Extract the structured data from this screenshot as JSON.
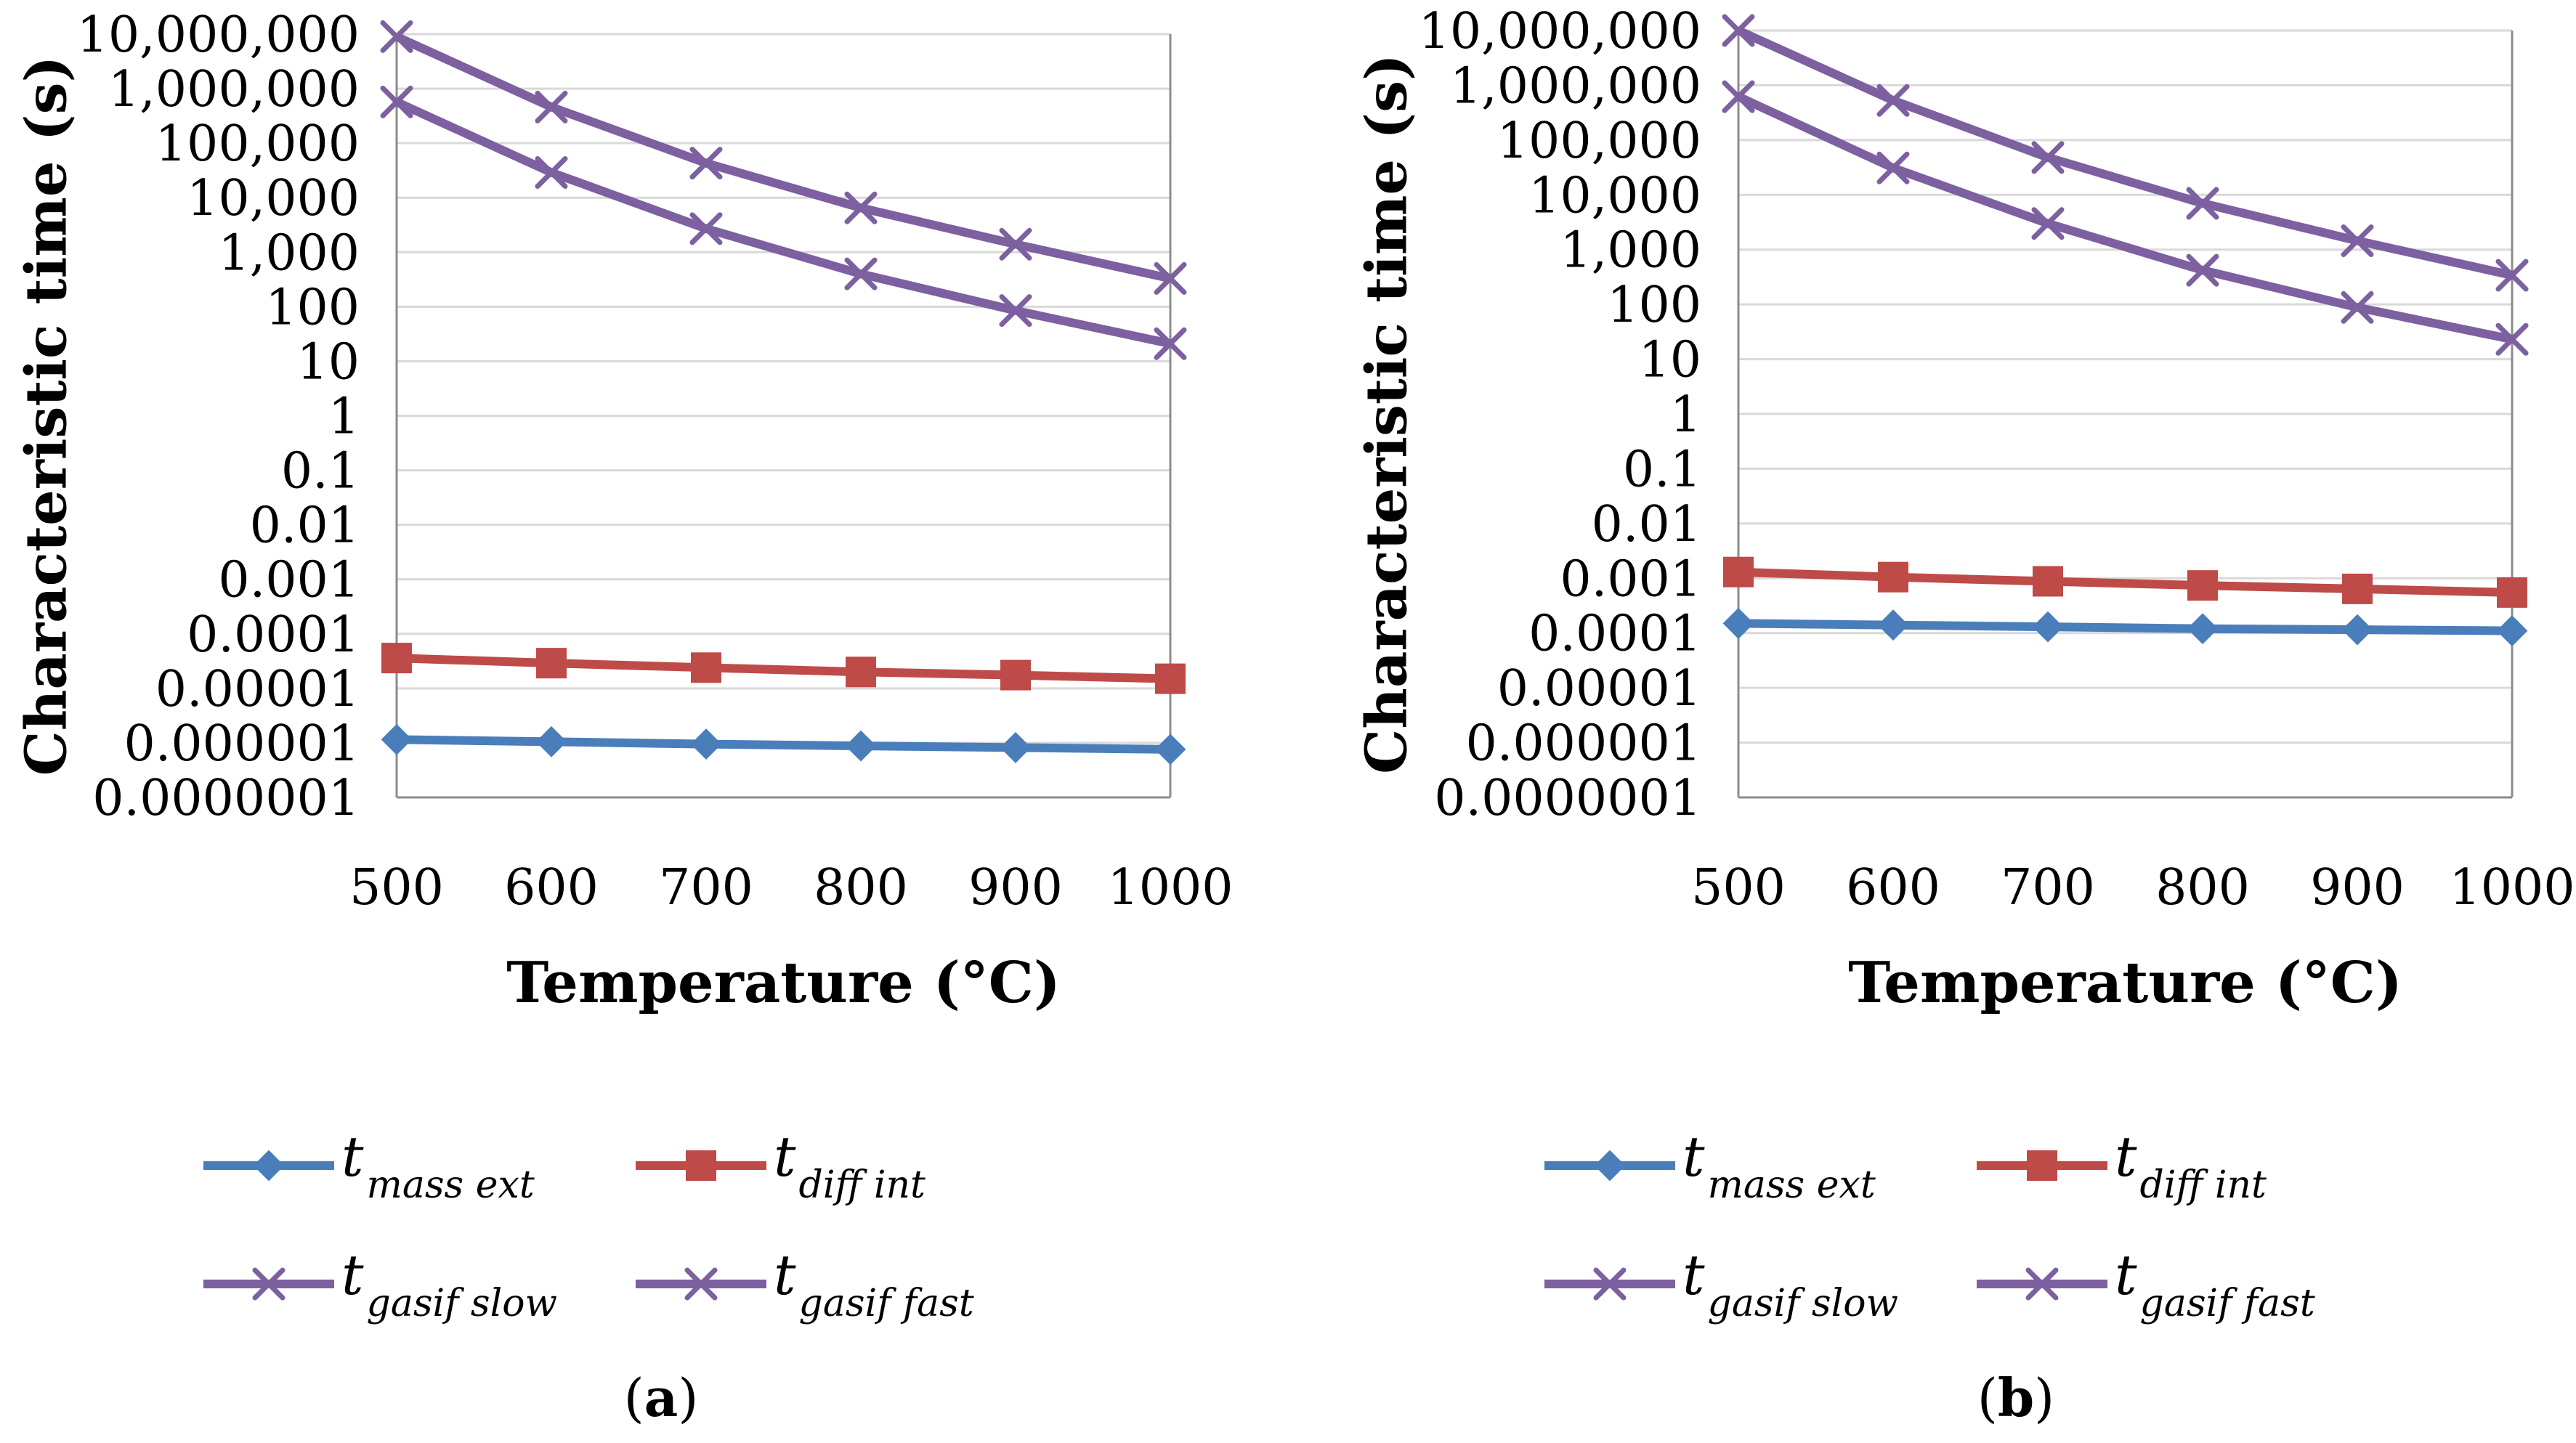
{
  "chart_data": [
    {
      "type": "line",
      "panel_label": "a",
      "xlabel": "Temperature (°C)",
      "ylabel": "Characteristic time (s)",
      "yscale": "log",
      "ylim": [
        1e-07,
        10000000.0
      ],
      "x": [
        500,
        600,
        700,
        800,
        900,
        1000
      ],
      "x_tick_labels": [
        "500",
        "600",
        "700",
        "800",
        "900",
        "1000"
      ],
      "y_tick_labels": [
        "0.0000001",
        "0.000001",
        "0.00001",
        "0.0001",
        "0.001",
        "0.01",
        "0.1",
        "1",
        "10",
        "100",
        "1,000",
        "10,000",
        "100,000",
        "1,000,000",
        "10,000,000"
      ],
      "grid": true,
      "series": [
        {
          "key": "mass_ext",
          "values": [
            1.15e-06,
            1.05e-06,
            9.5e-07,
            8.8e-07,
            8.2e-07,
            7.6e-07
          ]
        },
        {
          "key": "diff_int",
          "values": [
            3.6e-05,
            2.9e-05,
            2.4e-05,
            2e-05,
            1.75e-05,
            1.5e-05
          ]
        },
        {
          "key": "gasif_slow",
          "values": [
            9000000.0,
            460000.0,
            43000.0,
            6500.0,
            1400.0,
            330
          ]
        },
        {
          "key": "gasif_fast",
          "values": [
            570000.0,
            29000.0,
            2700.0,
            400,
            85,
            21
          ]
        }
      ]
    },
    {
      "type": "line",
      "panel_label": "b",
      "xlabel": "Temperature (°C)",
      "ylabel": "Characteristic time (s)",
      "yscale": "log",
      "ylim": [
        1e-07,
        10000000.0
      ],
      "x": [
        500,
        600,
        700,
        800,
        900,
        1000
      ],
      "x_tick_labels": [
        "500",
        "600",
        "700",
        "800",
        "900",
        "1000"
      ],
      "y_tick_labels": [
        "0.0000001",
        "0.000001",
        "0.00001",
        "0.0001",
        "0.001",
        "0.01",
        "0.1",
        "1",
        "10",
        "100",
        "1,000",
        "10,000",
        "100,000",
        "1,000,000",
        "10,000,000"
      ],
      "grid": true,
      "series": [
        {
          "key": "mass_ext",
          "values": [
            0.00015,
            0.00014,
            0.00013,
            0.00012,
            0.000115,
            0.00011
          ]
        },
        {
          "key": "diff_int",
          "values": [
            0.0013,
            0.00105,
            0.00088,
            0.00074,
            0.00064,
            0.00055
          ]
        },
        {
          "key": "gasif_slow",
          "values": [
            10000000.0,
            530000.0,
            48000.0,
            7000.0,
            1450.0,
            340
          ]
        },
        {
          "key": "gasif_fast",
          "values": [
            620000.0,
            31000.0,
            3000.0,
            420,
            88,
            23
          ]
        }
      ]
    }
  ],
  "legend": {
    "mass_ext": {
      "main": "t",
      "sub": "mass ext",
      "color": "#4a7ebb",
      "marker": "diamond"
    },
    "diff_int": {
      "main": "t",
      "sub": "diff int",
      "color": "#be4b48",
      "marker": "square"
    },
    "gasif_slow": {
      "main": "t",
      "sub": "gasif slow",
      "color": "#7d60a0",
      "marker": "x"
    },
    "gasif_fast": {
      "main": "t",
      "sub": "gasif fast",
      "color": "#7d60a0",
      "marker": "x"
    }
  }
}
